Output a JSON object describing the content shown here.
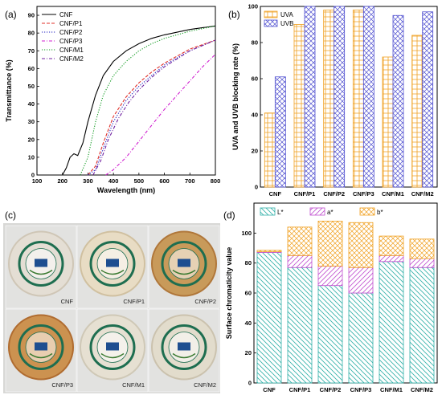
{
  "panels": {
    "a": {
      "label": "(a)"
    },
    "b": {
      "label": "(b)"
    },
    "c": {
      "label": "(c)"
    },
    "d": {
      "label": "(d)"
    }
  },
  "colors": {
    "CNF": "#000000",
    "CNF/P1": "#e0302a",
    "CNF/P2": "#2020c0",
    "CNF/P3": "#d020d0",
    "CNF/M1": "#109a20",
    "CNF/M2": "#7020a0",
    "UVA": "#f0a020",
    "UVB": "#5050d0",
    "L": "#30b0a8",
    "a": "#c050d0",
    "b": "#f0a020"
  },
  "chart_data": [
    {
      "id": "a",
      "type": "line",
      "xlabel": "Wavelength (nm)",
      "ylabel": "Transmittance (%)",
      "xlim": [
        100,
        800
      ],
      "ylim": [
        0,
        95
      ],
      "xticks": [
        100,
        200,
        300,
        400,
        500,
        600,
        700,
        800
      ],
      "yticks": [
        0,
        10,
        20,
        30,
        40,
        50,
        60,
        70,
        80,
        90
      ],
      "legend_position": "top-left",
      "series": [
        {
          "name": "CNF",
          "style": "solid",
          "x": [
            200,
            215,
            230,
            245,
            260,
            280,
            300,
            330,
            360,
            400,
            450,
            500,
            550,
            600,
            700,
            800
          ],
          "y": [
            0,
            4,
            10,
            12,
            11,
            18,
            30,
            45,
            56,
            64,
            70,
            74,
            77,
            79,
            82,
            84
          ]
        },
        {
          "name": "CNF/P1",
          "style": "dash",
          "x": [
            300,
            330,
            360,
            400,
            450,
            500,
            550,
            600,
            700,
            800
          ],
          "y": [
            0,
            5,
            18,
            33,
            44,
            52,
            58,
            63,
            71,
            76
          ]
        },
        {
          "name": "CNF/P2",
          "style": "dot",
          "x": [
            300,
            330,
            360,
            400,
            450,
            500,
            550,
            600,
            700,
            800
          ],
          "y": [
            0,
            3,
            15,
            30,
            42,
            50,
            56,
            62,
            70,
            76
          ]
        },
        {
          "name": "CNF/P3",
          "style": "dashdot",
          "x": [
            370,
            400,
            450,
            500,
            550,
            600,
            650,
            700,
            750,
            800
          ],
          "y": [
            0,
            3,
            10,
            19,
            28,
            37,
            45,
            53,
            61,
            68
          ]
        },
        {
          "name": "CNF/M1",
          "style": "dot",
          "x": [
            270,
            300,
            330,
            360,
            400,
            450,
            500,
            550,
            600,
            700,
            800
          ],
          "y": [
            0,
            10,
            30,
            45,
            56,
            64,
            70,
            74,
            77,
            81,
            84
          ]
        },
        {
          "name": "CNF/M2",
          "style": "dashdot",
          "x": [
            320,
            350,
            380,
            420,
            460,
            500,
            550,
            600,
            700,
            800
          ],
          "y": [
            0,
            8,
            20,
            32,
            41,
            48,
            55,
            61,
            70,
            76
          ]
        }
      ]
    },
    {
      "id": "b",
      "type": "bar",
      "ylabel": "UVA and UVB blocking rate (%)",
      "ylim": [
        0,
        100
      ],
      "yticks": [
        0,
        20,
        40,
        60,
        80,
        100
      ],
      "legend_position": "top-left",
      "categories": [
        "CNF",
        "CNF/P1",
        "CNF/P2",
        "CNF/P3",
        "CNF/M1",
        "CNF/M2"
      ],
      "series": [
        {
          "name": "UVA",
          "values": [
            41,
            90,
            98,
            98,
            72,
            84
          ]
        },
        {
          "name": "UVB",
          "values": [
            61,
            100,
            100,
            100,
            95,
            97
          ]
        }
      ]
    },
    {
      "id": "d",
      "type": "bar",
      "stacked": true,
      "ylabel": "Surface chromaticity value",
      "ylim": [
        0,
        120
      ],
      "yticks": [
        0,
        20,
        40,
        60,
        80,
        100
      ],
      "legend_position": "top",
      "categories": [
        "CNF",
        "CNF/P1",
        "CNF/P2",
        "CNF/P3",
        "CNF/M1",
        "CNF/M2"
      ],
      "series": [
        {
          "name": "L*",
          "values": [
            87,
            77,
            65,
            60,
            81,
            77
          ]
        },
        {
          "name": "a*",
          "values": [
            0.5,
            8,
            13,
            17,
            4,
            6
          ]
        },
        {
          "name": "b*",
          "values": [
            1,
            19,
            30,
            30,
            13,
            13
          ]
        }
      ]
    }
  ],
  "photos": [
    {
      "label": "CNF",
      "tint": "#e4ded4",
      "rim": "#cfc6b6"
    },
    {
      "label": "CNF/P1",
      "tint": "#e8dcc4",
      "rim": "#d0c0a0"
    },
    {
      "label": "CNF/P2",
      "tint": "#c89a5a",
      "rim": "#b0773a"
    },
    {
      "label": "CNF/P3",
      "tint": "#cc9250",
      "rim": "#b06c30"
    },
    {
      "label": "CNF/M1",
      "tint": "#e6e0d2",
      "rim": "#cfc8b6"
    },
    {
      "label": "CNF/M2",
      "tint": "#e2dccc",
      "rim": "#cbc2ae"
    }
  ]
}
